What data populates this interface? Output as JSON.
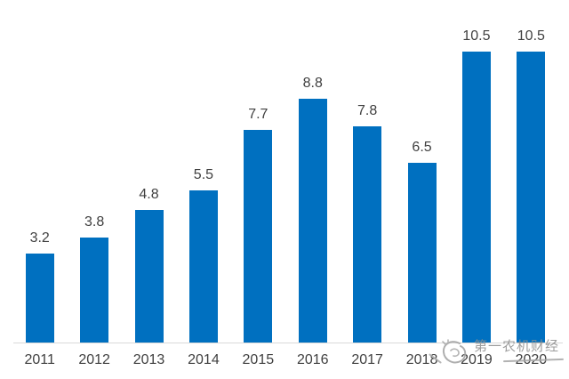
{
  "chart_data": {
    "type": "bar",
    "categories": [
      "2011",
      "2012",
      "2013",
      "2014",
      "2015",
      "2016",
      "2017",
      "2018",
      "2019",
      "2020"
    ],
    "values": [
      3.2,
      3.8,
      4.8,
      5.5,
      7.7,
      8.8,
      7.8,
      6.5,
      10.5,
      10.5
    ],
    "title": "",
    "xlabel": "",
    "ylabel": "",
    "ylim": [
      0,
      10.5
    ],
    "grid": false,
    "legend": false,
    "data_labels_shown": true,
    "bar_color": "#0070C0",
    "value_label_color": "#404040",
    "axis_label_color": "#404040",
    "axis_line_color": "#D9D9D9"
  },
  "watermark": {
    "text": "第一农机财经",
    "color": "#8F8F8F",
    "logo_icon": "sketch-circle-logo"
  }
}
